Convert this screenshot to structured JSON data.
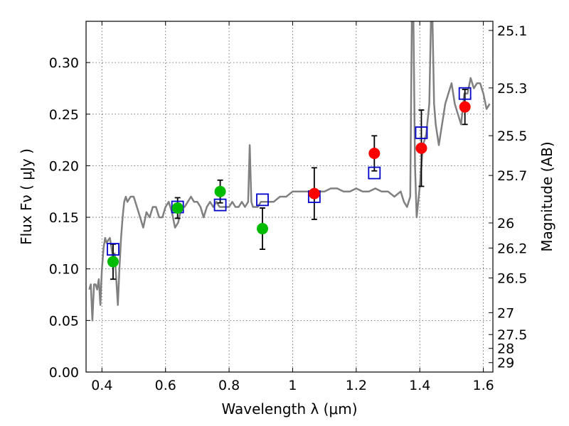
{
  "chart_data": {
    "type": "scatter",
    "title": "",
    "xlabel": "Wavelength  λ (μm)",
    "ylabel": "Flux  Fν  ( μJy )",
    "y2label": "Magnitude (AB)",
    "xlim": [
      0.35,
      1.63
    ],
    "ylim": [
      0.0,
      0.34
    ],
    "xticks": [
      0.4,
      0.6,
      0.8,
      1.0,
      1.2,
      1.4,
      1.6
    ],
    "xtick_labels": [
      "0.4",
      "0.6",
      "0.8",
      "1",
      "1.2",
      "1.4",
      "1.6"
    ],
    "yticks": [
      0.0,
      0.05,
      0.1,
      0.15,
      0.2,
      0.25,
      0.3
    ],
    "ytick_labels": [
      "0.00",
      "0.05",
      "0.10",
      "0.15",
      "0.20",
      "0.25",
      "0.30"
    ],
    "y2ticks": [
      25.1,
      25.3,
      25.5,
      25.7,
      26,
      26.2,
      26.5,
      27,
      27.5,
      28,
      29
    ],
    "y2tick_labels": [
      "25.1",
      "25.3",
      "25.5",
      "25.7",
      "26",
      "26.2",
      "26.5",
      "27",
      "27.5",
      "28",
      "29"
    ],
    "grid": true,
    "colors": {
      "spectrum": "#808080",
      "model": "#0000cc",
      "green": "#00bb00",
      "red": "#ff0000",
      "errorbar": "#000000"
    },
    "series": [
      {
        "kind": "spectrum",
        "x": [
          0.36,
          0.365,
          0.37,
          0.375,
          0.38,
          0.385,
          0.39,
          0.395,
          0.4,
          0.405,
          0.41,
          0.415,
          0.42,
          0.425,
          0.43,
          0.435,
          0.44,
          0.445,
          0.45,
          0.455,
          0.46,
          0.465,
          0.47,
          0.475,
          0.48,
          0.49,
          0.5,
          0.51,
          0.52,
          0.53,
          0.54,
          0.55,
          0.56,
          0.57,
          0.58,
          0.59,
          0.6,
          0.61,
          0.62,
          0.63,
          0.64,
          0.65,
          0.66,
          0.67,
          0.68,
          0.69,
          0.7,
          0.71,
          0.72,
          0.73,
          0.74,
          0.75,
          0.76,
          0.77,
          0.78,
          0.79,
          0.8,
          0.81,
          0.82,
          0.83,
          0.84,
          0.85,
          0.86,
          0.865,
          0.87,
          0.875,
          0.88,
          0.89,
          0.9,
          0.92,
          0.94,
          0.96,
          0.98,
          1.0,
          1.02,
          1.04,
          1.06,
          1.08,
          1.1,
          1.12,
          1.14,
          1.16,
          1.18,
          1.2,
          1.22,
          1.24,
          1.26,
          1.28,
          1.3,
          1.32,
          1.34,
          1.35,
          1.36,
          1.37,
          1.375,
          1.38,
          1.385,
          1.39,
          1.4,
          1.41,
          1.42,
          1.43,
          1.435,
          1.44,
          1.445,
          1.45,
          1.46,
          1.47,
          1.48,
          1.49,
          1.5,
          1.51,
          1.52,
          1.53,
          1.54,
          1.55,
          1.56,
          1.57,
          1.58,
          1.59,
          1.6,
          1.61,
          1.62
        ],
        "y": [
          0.08,
          0.085,
          0.05,
          0.085,
          0.085,
          0.08,
          0.09,
          0.065,
          0.1,
          0.12,
          0.13,
          0.125,
          0.128,
          0.13,
          0.12,
          0.11,
          0.115,
          0.09,
          0.065,
          0.1,
          0.13,
          0.15,
          0.165,
          0.17,
          0.165,
          0.17,
          0.17,
          0.16,
          0.15,
          0.14,
          0.155,
          0.15,
          0.16,
          0.16,
          0.15,
          0.15,
          0.16,
          0.165,
          0.155,
          0.14,
          0.145,
          0.16,
          0.16,
          0.165,
          0.17,
          0.165,
          0.165,
          0.16,
          0.15,
          0.16,
          0.165,
          0.16,
          0.165,
          0.16,
          0.16,
          0.16,
          0.16,
          0.165,
          0.16,
          0.16,
          0.165,
          0.16,
          0.165,
          0.22,
          0.165,
          0.16,
          0.16,
          0.16,
          0.165,
          0.165,
          0.165,
          0.17,
          0.17,
          0.175,
          0.175,
          0.175,
          0.175,
          0.175,
          0.175,
          0.178,
          0.178,
          0.175,
          0.175,
          0.178,
          0.175,
          0.175,
          0.178,
          0.175,
          0.175,
          0.17,
          0.175,
          0.165,
          0.16,
          0.17,
          0.34,
          0.34,
          0.2,
          0.15,
          0.18,
          0.22,
          0.23,
          0.26,
          0.34,
          0.34,
          0.26,
          0.24,
          0.22,
          0.24,
          0.26,
          0.27,
          0.28,
          0.26,
          0.25,
          0.24,
          0.27,
          0.27,
          0.285,
          0.275,
          0.28,
          0.28,
          0.27,
          0.255,
          0.26
        ]
      },
      {
        "kind": "model_squares",
        "x": [
          0.435,
          0.638,
          0.772,
          0.905,
          1.068,
          1.257,
          1.405,
          1.542
        ],
        "y": [
          0.119,
          0.16,
          0.162,
          0.167,
          0.17,
          0.193,
          0.232,
          0.27
        ]
      },
      {
        "kind": "green_points",
        "x": [
          0.435,
          0.638,
          0.772,
          0.905
        ],
        "y": [
          0.107,
          0.159,
          0.175,
          0.139
        ],
        "err": [
          0.017,
          0.01,
          0.011,
          0.02
        ]
      },
      {
        "kind": "red_points",
        "x": [
          1.068,
          1.257,
          1.405,
          1.542
        ],
        "y": [
          0.173,
          0.212,
          0.217,
          0.257
        ],
        "err": [
          0.025,
          0.017,
          0.037,
          0.017
        ]
      }
    ]
  }
}
